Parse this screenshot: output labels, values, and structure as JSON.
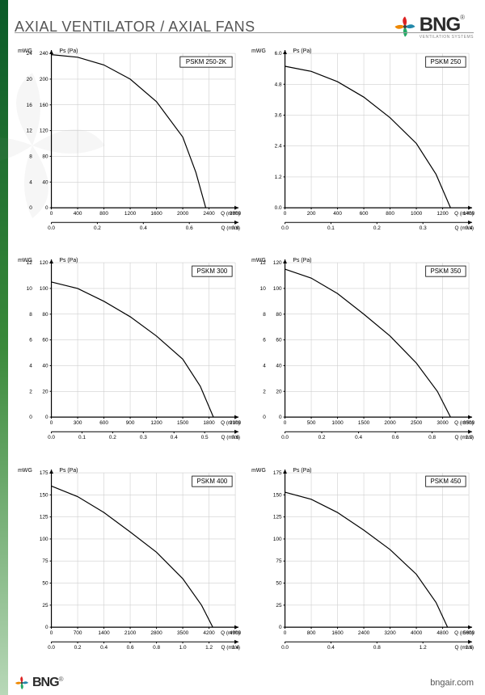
{
  "header": {
    "title": "AXIAL VENTILATOR / AXIAL FANS"
  },
  "brand": {
    "name": "BNG",
    "sub": "VENTILATION SYSTEMS",
    "reg": "®"
  },
  "footer": {
    "url": "bngair.com"
  },
  "axis_labels": {
    "y1": "mmWG",
    "y2": "Ps (Pa)",
    "x1": "Q (m³/h)",
    "x2": "Q (m³/s)"
  },
  "style": {
    "plot_bg": "#ffffff",
    "grid_color": "#cfcfcf",
    "axis_color": "#000000",
    "curve_color": "#000000",
    "curve_width": 1.2,
    "axis_width": 1.2,
    "tick_font": 6.5,
    "label_font": 7,
    "title_box_font": 8,
    "title_box_border": "#000",
    "title_box_bg": "#ffffff"
  },
  "charts": [
    {
      "title": "PSKM 250-2K",
      "y_pa": {
        "min": 0,
        "max": 240,
        "step": 40
      },
      "y_wg": {
        "min": 0,
        "max": 24,
        "step": 4
      },
      "x_mh": {
        "min": 0,
        "max": 2800,
        "step": 400
      },
      "x_ms": {
        "min": 0,
        "max": 0.8,
        "step": 0.2,
        "decimals": 1
      },
      "curve": [
        [
          0,
          238
        ],
        [
          400,
          234
        ],
        [
          800,
          222
        ],
        [
          1200,
          200
        ],
        [
          1600,
          165
        ],
        [
          2000,
          110
        ],
        [
          2200,
          55
        ],
        [
          2350,
          0
        ]
      ]
    },
    {
      "title": "PSKM 250",
      "y_pa": {
        "min": 0,
        "max": 6.0,
        "step": 1.2,
        "decimals": 1
      },
      "y_wg": {
        "min": 0,
        "max": 0.6,
        "step": 0.1,
        "decimals": 1,
        "hide": true
      },
      "x_mh": {
        "min": 0,
        "max": 1400,
        "step": 200
      },
      "x_ms": {
        "min": 0,
        "max": 0.4,
        "step": 0.1,
        "decimals": 1
      },
      "curve": [
        [
          0,
          5.5
        ],
        [
          200,
          5.3
        ],
        [
          400,
          4.9
        ],
        [
          600,
          4.3
        ],
        [
          800,
          3.5
        ],
        [
          1000,
          2.5
        ],
        [
          1150,
          1.3
        ],
        [
          1260,
          0
        ]
      ]
    },
    {
      "title": "PSKM 300",
      "y_pa": {
        "min": 0,
        "max": 120,
        "step": 20
      },
      "y_wg": {
        "min": 0,
        "max": 12,
        "step": 2
      },
      "x_mh": {
        "min": 0,
        "max": 2100,
        "step": 300
      },
      "x_ms": {
        "min": 0,
        "max": 0.6,
        "step": 0.1,
        "decimals": 1
      },
      "curve": [
        [
          0,
          105
        ],
        [
          300,
          100
        ],
        [
          600,
          90
        ],
        [
          900,
          78
        ],
        [
          1200,
          63
        ],
        [
          1500,
          45
        ],
        [
          1700,
          24
        ],
        [
          1850,
          0
        ]
      ]
    },
    {
      "title": "PSKM 350",
      "y_pa": {
        "min": 0,
        "max": 120,
        "step": 20
      },
      "y_wg": {
        "min": 0,
        "max": 12,
        "step": 2
      },
      "x_mh": {
        "min": 0,
        "max": 3500,
        "step": 500
      },
      "x_ms": {
        "min": 0,
        "max": 1.0,
        "step": 0.2,
        "decimals": 1
      },
      "curve": [
        [
          0,
          115
        ],
        [
          500,
          108
        ],
        [
          1000,
          96
        ],
        [
          1500,
          80
        ],
        [
          2000,
          63
        ],
        [
          2500,
          42
        ],
        [
          2900,
          20
        ],
        [
          3150,
          0
        ]
      ]
    },
    {
      "title": "PSKM 400",
      "y_pa": {
        "min": 0,
        "max": 175,
        "step": 25
      },
      "y_wg": {
        "min": 0,
        "max": 17.5,
        "step": 2.5,
        "hide": true
      },
      "x_mh": {
        "min": 0,
        "max": 4900,
        "step": 700
      },
      "x_ms": {
        "min": 0,
        "max": 1.4,
        "step": 0.2,
        "decimals": 1
      },
      "curve": [
        [
          0,
          160
        ],
        [
          700,
          148
        ],
        [
          1400,
          130
        ],
        [
          2100,
          108
        ],
        [
          2800,
          85
        ],
        [
          3500,
          55
        ],
        [
          4000,
          25
        ],
        [
          4300,
          0
        ]
      ]
    },
    {
      "title": "PSKM 450",
      "y_pa": {
        "min": 0,
        "max": 175,
        "step": 25
      },
      "y_wg": {
        "min": 0,
        "max": 17.5,
        "step": 2.5,
        "hide": true
      },
      "x_mh": {
        "min": 0,
        "max": 5600,
        "step": 800
      },
      "x_ms": {
        "min": 0,
        "max": 1.6,
        "step": 0.4,
        "decimals": 1
      },
      "curve": [
        [
          0,
          153
        ],
        [
          800,
          145
        ],
        [
          1600,
          130
        ],
        [
          2400,
          110
        ],
        [
          3200,
          88
        ],
        [
          4000,
          60
        ],
        [
          4600,
          28
        ],
        [
          4950,
          0
        ]
      ]
    }
  ]
}
